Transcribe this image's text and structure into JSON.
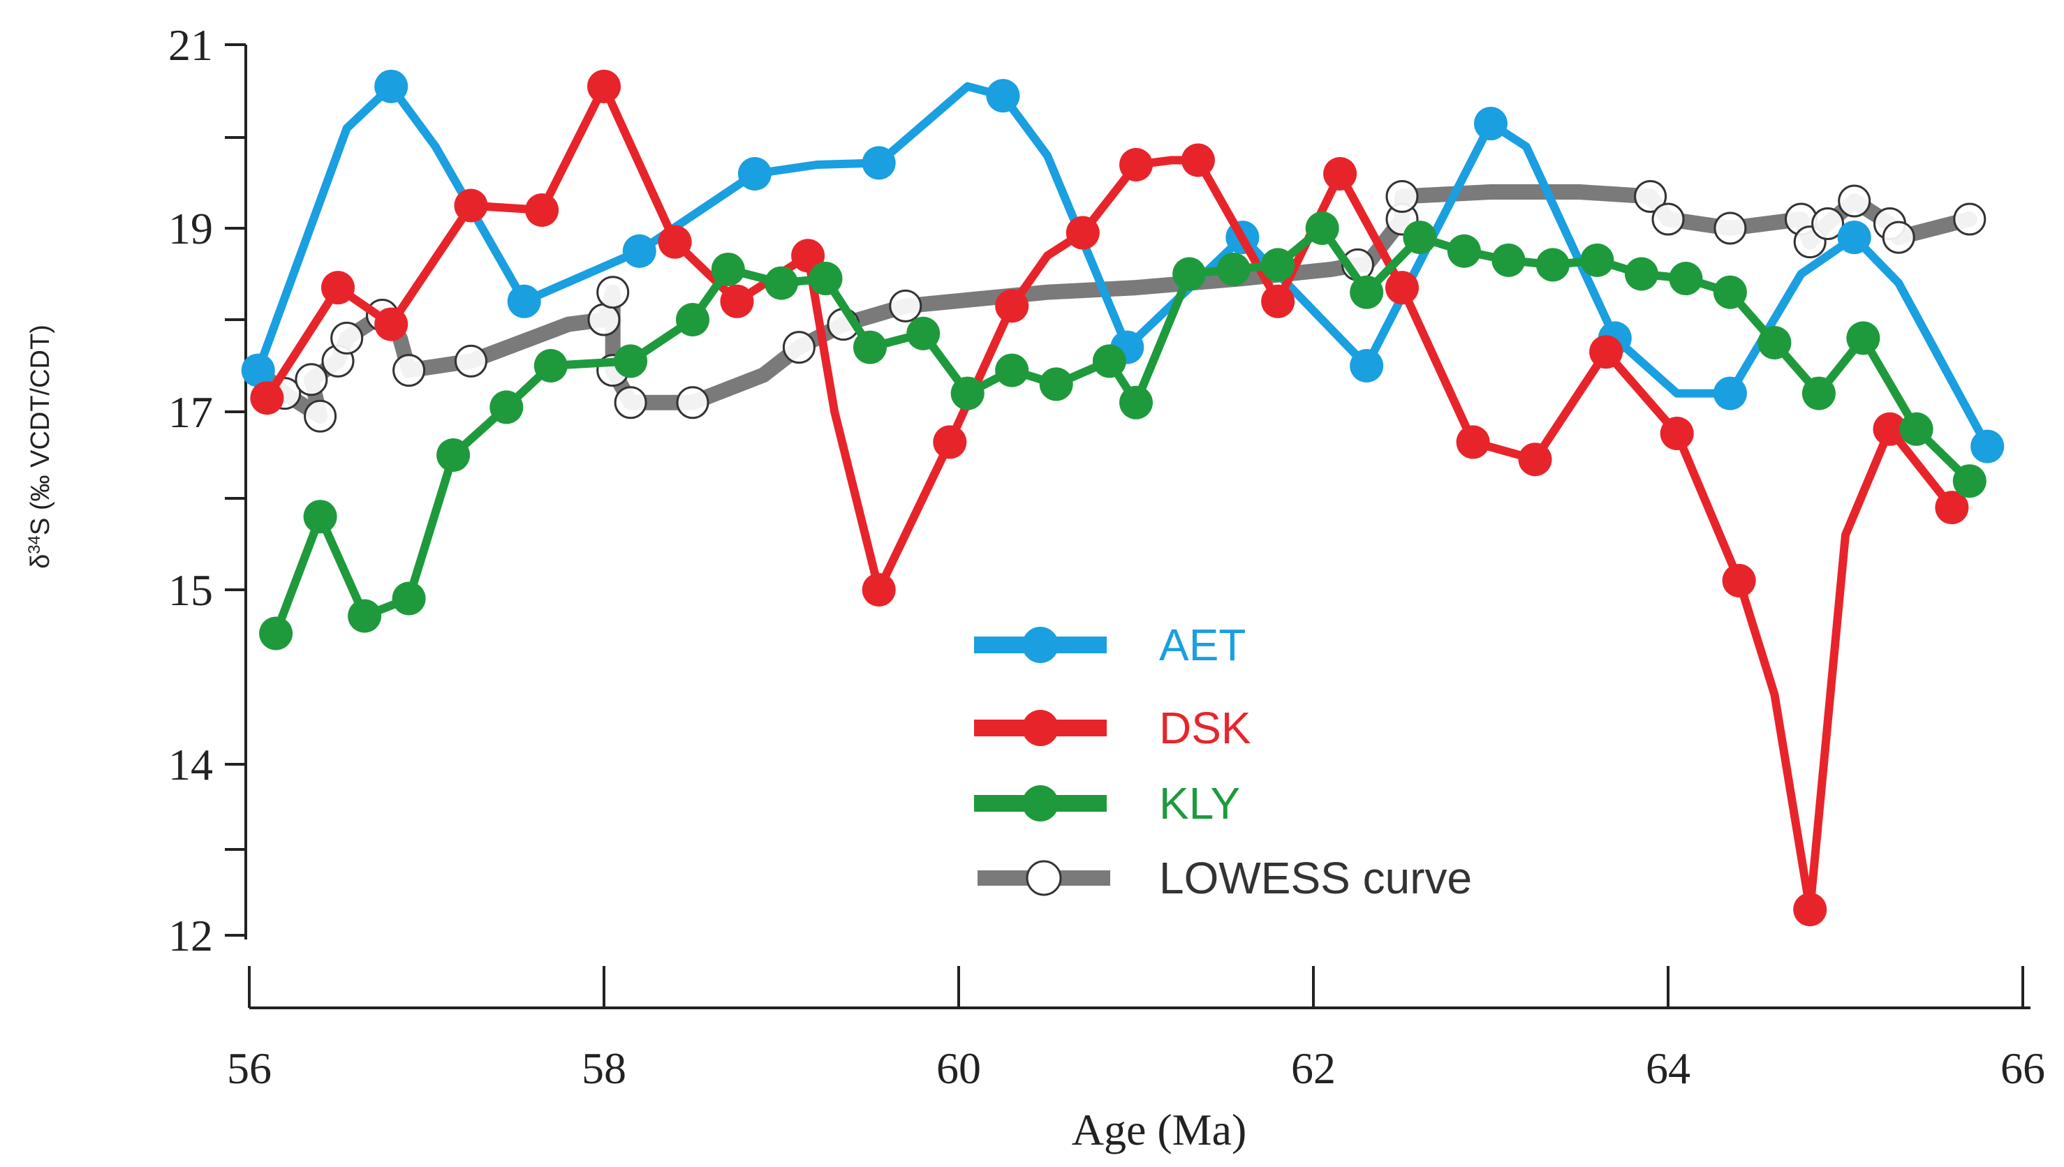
{
  "chart_data": {
    "type": "line",
    "title": "",
    "xlabel": "Age (Ma)",
    "ylabel_prefix": "δ",
    "ylabel_superscript": "34",
    "ylabel_rest": "S (‰ VCDT/CDT)",
    "xlim": [
      56,
      66
    ],
    "ylim": [
      12,
      21
    ],
    "x_tick_labels": [
      "56",
      "58",
      "60",
      "62",
      "64",
      "66"
    ],
    "x_ticks": [
      56,
      58,
      60,
      62,
      64,
      66
    ],
    "y_tick_labels": [
      "21",
      "19",
      "17",
      "15",
      "14",
      "12"
    ],
    "y_ticks": [
      21,
      19,
      17,
      15,
      14,
      12
    ],
    "y_minor_ticks": [
      20,
      18,
      16,
      13
    ],
    "legend_position": "center",
    "series": [
      {
        "name": "AET",
        "color": "#1a9fe0",
        "style": "line-markers",
        "points": [
          {
            "x": 56.05,
            "y": 17.45,
            "m": true
          },
          {
            "x": 56.55,
            "y": 20.1,
            "m": false
          },
          {
            "x": 56.8,
            "y": 20.55,
            "m": true
          },
          {
            "x": 57.05,
            "y": 19.9,
            "m": false
          },
          {
            "x": 57.55,
            "y": 18.2,
            "m": true
          },
          {
            "x": 58.2,
            "y": 18.75,
            "m": true
          },
          {
            "x": 58.85,
            "y": 19.6,
            "m": true
          },
          {
            "x": 59.2,
            "y": 19.7,
            "m": false
          },
          {
            "x": 59.55,
            "y": 19.72,
            "m": true
          },
          {
            "x": 60.05,
            "y": 20.55,
            "m": false
          },
          {
            "x": 60.25,
            "y": 20.45,
            "m": true
          },
          {
            "x": 60.5,
            "y": 19.8,
            "m": false
          },
          {
            "x": 60.95,
            "y": 17.7,
            "m": true
          },
          {
            "x": 61.6,
            "y": 18.9,
            "m": true
          },
          {
            "x": 62.3,
            "y": 17.5,
            "m": true
          },
          {
            "x": 63.0,
            "y": 20.15,
            "m": true
          },
          {
            "x": 63.2,
            "y": 19.9,
            "m": false
          },
          {
            "x": 63.7,
            "y": 17.8,
            "m": true
          },
          {
            "x": 64.05,
            "y": 17.2,
            "m": false
          },
          {
            "x": 64.35,
            "y": 17.2,
            "m": true
          },
          {
            "x": 64.75,
            "y": 18.5,
            "m": false
          },
          {
            "x": 65.05,
            "y": 18.9,
            "m": true
          },
          {
            "x": 65.3,
            "y": 18.4,
            "m": false
          },
          {
            "x": 65.8,
            "y": 16.6,
            "m": true
          }
        ]
      },
      {
        "name": "DSK",
        "color": "#e8242b",
        "style": "line-markers",
        "points": [
          {
            "x": 56.1,
            "y": 17.15,
            "m": true
          },
          {
            "x": 56.5,
            "y": 18.35,
            "m": true
          },
          {
            "x": 56.8,
            "y": 17.95,
            "m": true
          },
          {
            "x": 57.25,
            "y": 19.25,
            "m": true
          },
          {
            "x": 57.65,
            "y": 19.2,
            "m": true
          },
          {
            "x": 58.0,
            "y": 20.55,
            "m": true
          },
          {
            "x": 58.4,
            "y": 18.85,
            "m": true
          },
          {
            "x": 58.75,
            "y": 18.2,
            "m": true
          },
          {
            "x": 59.15,
            "y": 18.7,
            "m": true
          },
          {
            "x": 59.3,
            "y": 17.0,
            "m": false
          },
          {
            "x": 59.55,
            "y": 15.0,
            "m": true
          },
          {
            "x": 59.95,
            "y": 16.65,
            "m": true
          },
          {
            "x": 60.3,
            "y": 18.15,
            "m": true
          },
          {
            "x": 60.5,
            "y": 18.7,
            "m": false
          },
          {
            "x": 60.7,
            "y": 18.95,
            "m": true
          },
          {
            "x": 61.0,
            "y": 19.7,
            "m": true
          },
          {
            "x": 61.2,
            "y": 19.75,
            "m": false
          },
          {
            "x": 61.35,
            "y": 19.75,
            "m": true
          },
          {
            "x": 61.8,
            "y": 18.2,
            "m": true
          },
          {
            "x": 62.15,
            "y": 19.6,
            "m": true
          },
          {
            "x": 62.5,
            "y": 18.35,
            "m": true
          },
          {
            "x": 62.9,
            "y": 16.65,
            "m": true
          },
          {
            "x": 63.25,
            "y": 16.45,
            "m": true
          },
          {
            "x": 63.65,
            "y": 17.65,
            "m": true
          },
          {
            "x": 64.05,
            "y": 16.75,
            "m": true
          },
          {
            "x": 64.4,
            "y": 15.1,
            "m": true
          },
          {
            "x": 64.6,
            "y": 14.4,
            "m": false
          },
          {
            "x": 64.8,
            "y": 12.3,
            "m": true
          },
          {
            "x": 65.0,
            "y": 15.6,
            "m": false
          },
          {
            "x": 65.25,
            "y": 16.8,
            "m": true
          },
          {
            "x": 65.6,
            "y": 15.9,
            "m": true
          }
        ]
      },
      {
        "name": "KLY",
        "color": "#1e9a3d",
        "style": "line-markers",
        "points": [
          {
            "x": 56.15,
            "y": 14.75,
            "m": true
          },
          {
            "x": 56.4,
            "y": 15.8,
            "m": true
          },
          {
            "x": 56.65,
            "y": 14.85,
            "m": true
          },
          {
            "x": 56.9,
            "y": 14.95,
            "m": true
          },
          {
            "x": 57.15,
            "y": 16.5,
            "m": true
          },
          {
            "x": 57.45,
            "y": 17.05,
            "m": true
          },
          {
            "x": 57.7,
            "y": 17.5,
            "m": true
          },
          {
            "x": 58.15,
            "y": 17.55,
            "m": true
          },
          {
            "x": 58.5,
            "y": 18.0,
            "m": true
          },
          {
            "x": 58.7,
            "y": 18.55,
            "m": true
          },
          {
            "x": 59.0,
            "y": 18.4,
            "m": true
          },
          {
            "x": 59.25,
            "y": 18.45,
            "m": true
          },
          {
            "x": 59.5,
            "y": 17.7,
            "m": true
          },
          {
            "x": 59.8,
            "y": 17.85,
            "m": true
          },
          {
            "x": 60.05,
            "y": 17.2,
            "m": true
          },
          {
            "x": 60.3,
            "y": 17.45,
            "m": true
          },
          {
            "x": 60.55,
            "y": 17.3,
            "m": true
          },
          {
            "x": 60.85,
            "y": 17.55,
            "m": true
          },
          {
            "x": 61.0,
            "y": 17.1,
            "m": true
          },
          {
            "x": 61.3,
            "y": 18.5,
            "m": true
          },
          {
            "x": 61.55,
            "y": 18.55,
            "m": true
          },
          {
            "x": 61.8,
            "y": 18.6,
            "m": true
          },
          {
            "x": 62.05,
            "y": 19.0,
            "m": true
          },
          {
            "x": 62.3,
            "y": 18.3,
            "m": true
          },
          {
            "x": 62.6,
            "y": 18.9,
            "m": true
          },
          {
            "x": 62.85,
            "y": 18.75,
            "m": true
          },
          {
            "x": 63.1,
            "y": 18.65,
            "m": true
          },
          {
            "x": 63.35,
            "y": 18.6,
            "m": true
          },
          {
            "x": 63.6,
            "y": 18.65,
            "m": true
          },
          {
            "x": 63.85,
            "y": 18.5,
            "m": true
          },
          {
            "x": 64.1,
            "y": 18.45,
            "m": true
          },
          {
            "x": 64.35,
            "y": 18.3,
            "m": true
          },
          {
            "x": 64.6,
            "y": 17.75,
            "m": true
          },
          {
            "x": 64.85,
            "y": 17.2,
            "m": true
          },
          {
            "x": 65.1,
            "y": 17.8,
            "m": true
          },
          {
            "x": 65.4,
            "y": 16.8,
            "m": true
          },
          {
            "x": 65.7,
            "y": 16.2,
            "m": true
          }
        ]
      },
      {
        "name": "LOWESS curve",
        "color": "#7a7a7a",
        "style": "thick-line-open-circles",
        "points": [
          {
            "x": 56.05,
            "y": 17.45,
            "m": true
          },
          {
            "x": 56.2,
            "y": 17.2,
            "m": true
          },
          {
            "x": 56.4,
            "y": 16.95,
            "m": true
          },
          {
            "x": 56.35,
            "y": 17.35,
            "m": true
          },
          {
            "x": 56.5,
            "y": 17.55,
            "m": true
          },
          {
            "x": 56.55,
            "y": 17.8,
            "m": true
          },
          {
            "x": 56.75,
            "y": 18.05,
            "m": true
          },
          {
            "x": 56.85,
            "y": 17.8,
            "m": false
          },
          {
            "x": 56.9,
            "y": 17.45,
            "m": true
          },
          {
            "x": 57.25,
            "y": 17.55,
            "m": true
          },
          {
            "x": 57.8,
            "y": 17.95,
            "m": false
          },
          {
            "x": 58.0,
            "y": 18.0,
            "m": true
          },
          {
            "x": 58.05,
            "y": 18.3,
            "m": true
          },
          {
            "x": 58.05,
            "y": 17.45,
            "m": true
          },
          {
            "x": 58.15,
            "y": 17.1,
            "m": true
          },
          {
            "x": 58.5,
            "y": 17.1,
            "m": true
          },
          {
            "x": 58.9,
            "y": 17.4,
            "m": false
          },
          {
            "x": 59.1,
            "y": 17.7,
            "m": true
          },
          {
            "x": 59.35,
            "y": 17.95,
            "m": true
          },
          {
            "x": 59.7,
            "y": 18.15,
            "m": true
          },
          {
            "x": 60.5,
            "y": 18.3,
            "m": false
          },
          {
            "x": 61.0,
            "y": 18.35,
            "m": false
          },
          {
            "x": 61.6,
            "y": 18.45,
            "m": false
          },
          {
            "x": 62.1,
            "y": 18.55,
            "m": false
          },
          {
            "x": 62.25,
            "y": 18.6,
            "m": true
          },
          {
            "x": 62.3,
            "y": 18.6,
            "m": false
          },
          {
            "x": 62.5,
            "y": 19.1,
            "m": true
          },
          {
            "x": 62.5,
            "y": 19.35,
            "m": true
          },
          {
            "x": 63.0,
            "y": 19.4,
            "m": false
          },
          {
            "x": 63.5,
            "y": 19.4,
            "m": false
          },
          {
            "x": 63.9,
            "y": 19.35,
            "m": true
          },
          {
            "x": 64.0,
            "y": 19.1,
            "m": true
          },
          {
            "x": 64.35,
            "y": 19.0,
            "m": true
          },
          {
            "x": 64.75,
            "y": 19.1,
            "m": true
          },
          {
            "x": 64.8,
            "y": 18.85,
            "m": true
          },
          {
            "x": 64.9,
            "y": 19.05,
            "m": true
          },
          {
            "x": 65.05,
            "y": 19.3,
            "m": true
          },
          {
            "x": 65.25,
            "y": 19.05,
            "m": true
          },
          {
            "x": 65.3,
            "y": 18.9,
            "m": true
          },
          {
            "x": 65.7,
            "y": 19.1,
            "m": true
          }
        ]
      }
    ]
  }
}
